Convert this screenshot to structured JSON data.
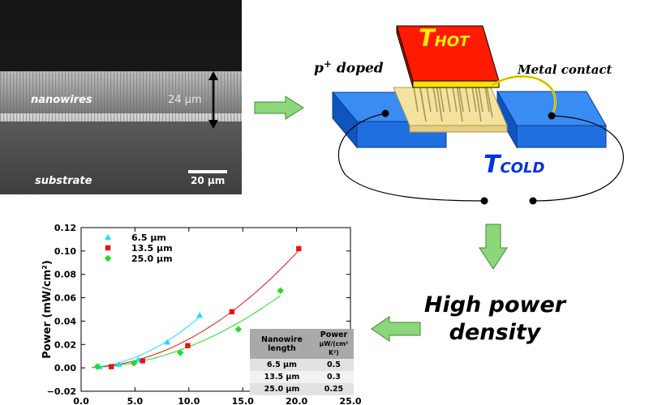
{
  "sem": {
    "nanowires_label": "nanowires",
    "height_label": "24 µm",
    "substrate_label": "substrate",
    "scalebar_label": "20 µm"
  },
  "device": {
    "t_hot": "T",
    "t_hot_sub": "HOT",
    "t_cold": "T",
    "t_cold_sub": "COLD",
    "p_doped": "p",
    "p_doped_sup": "+",
    "p_doped_rest": " doped",
    "metal_contact": "Metal contact",
    "colors": {
      "hot": "#ff1a00",
      "hot_text": "#ffee00",
      "cold": "#1a6fe8",
      "cold_text": "#0033dd",
      "wire": "#b5a85a",
      "contact_wire": "#f0e000"
    }
  },
  "result": {
    "line1": "High power",
    "line2": "density"
  },
  "arrows": {
    "color": "#8ed67a",
    "border": "#3a8a3a"
  },
  "table": {
    "headers": [
      "Nanowire length",
      "Power"
    ],
    "header_units": [
      "",
      "µW/(cm² K²)"
    ],
    "rows": [
      [
        "6.5 µm",
        "0.5"
      ],
      [
        "13.5 µm",
        "0.3"
      ],
      [
        "25.0 µm",
        "0.25"
      ]
    ]
  },
  "chart_data": {
    "type": "scatter",
    "ylabel": "Power (mW/cm²)",
    "xlabel": "",
    "xlim": [
      0,
      25
    ],
    "ylim": [
      -0.02,
      0.12
    ],
    "x_ticks": [
      "0.0",
      "5.0",
      "10.0",
      "15.0",
      "20.0",
      "25.0"
    ],
    "y_ticks": [
      "0.12",
      "0.10",
      "0.08",
      "0.06",
      "0.04",
      "0.02",
      "0.00",
      "−0.02"
    ],
    "legend_position": "top-left",
    "series": [
      {
        "name": "6.5 µm",
        "color": "#1adfff",
        "marker": "triangle",
        "x": [
          1.7,
          3.5,
          5.3,
          8.0,
          11.0
        ],
        "y": [
          0.001,
          0.003,
          0.007,
          0.022,
          0.045
        ]
      },
      {
        "name": "13.5 µm",
        "color": "#ee1111",
        "marker": "square",
        "x": [
          2.8,
          5.7,
          9.9,
          14.0,
          20.2
        ],
        "y": [
          0.001,
          0.006,
          0.019,
          0.048,
          0.102
        ]
      },
      {
        "name": "25.0 µm",
        "color": "#22dd22",
        "marker": "diamond",
        "x": [
          1.5,
          4.9,
          9.2,
          14.6,
          18.5
        ],
        "y": [
          0.001,
          0.004,
          0.013,
          0.033,
          0.066
        ]
      }
    ]
  }
}
